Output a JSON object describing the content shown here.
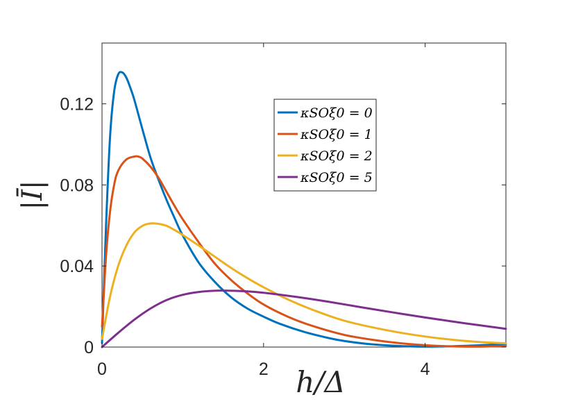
{
  "chart_data": {
    "type": "line",
    "xlabel": "h/Δ",
    "ylabel": "|Ī|",
    "xlim": [
      0,
      5
    ],
    "ylim": [
      0,
      0.15
    ],
    "xticks": [
      {
        "value": 0,
        "label": "0"
      },
      {
        "value": 2,
        "label": "2"
      },
      {
        "value": 4,
        "label": "4"
      }
    ],
    "yticks": [
      {
        "value": 0,
        "label": "0"
      },
      {
        "value": 0.04,
        "label": "0.04"
      },
      {
        "value": 0.08,
        "label": "0.08"
      },
      {
        "value": 0.12,
        "label": "0.12"
      }
    ],
    "grid": false,
    "legend_position": "upper-center",
    "series": [
      {
        "name": "κSOξ0 = 0",
        "color": "#0072BD",
        "x": [
          0,
          0.05,
          0.1,
          0.15,
          0.2,
          0.25,
          0.3,
          0.35,
          0.4,
          0.5,
          0.6,
          0.7,
          0.8,
          0.9,
          1.0,
          1.2,
          1.4,
          1.6,
          1.8,
          2.0,
          2.2,
          2.5,
          2.8,
          3.0,
          3.3,
          3.6,
          4.0,
          4.5,
          5.0
        ],
        "y": [
          0.002,
          0.06,
          0.104,
          0.126,
          0.1345,
          0.1355,
          0.133,
          0.128,
          0.122,
          0.1075,
          0.0935,
          0.0825,
          0.0725,
          0.0635,
          0.055,
          0.0415,
          0.032,
          0.0245,
          0.019,
          0.015,
          0.0115,
          0.0075,
          0.0045,
          0.003,
          0.0015,
          0.0007,
          0.0002,
          0.0006,
          0.0015
        ]
      },
      {
        "name": "κSOξ0 = 1",
        "color": "#D95319",
        "x": [
          0,
          0.05,
          0.1,
          0.15,
          0.2,
          0.3,
          0.4,
          0.45,
          0.5,
          0.6,
          0.7,
          0.8,
          0.9,
          1.0,
          1.2,
          1.4,
          1.6,
          1.8,
          2.0,
          2.3,
          2.6,
          3.0,
          3.4,
          3.8,
          4.2,
          4.6,
          5.0
        ],
        "y": [
          0.01,
          0.045,
          0.067,
          0.08,
          0.087,
          0.0925,
          0.094,
          0.094,
          0.093,
          0.089,
          0.0835,
          0.0765,
          0.0695,
          0.063,
          0.0515,
          0.041,
          0.033,
          0.0265,
          0.021,
          0.015,
          0.0105,
          0.006,
          0.0033,
          0.0015,
          0.0005,
          0.0002,
          0.0005
        ]
      },
      {
        "name": "κSOξ0 = 2",
        "color": "#EDB120",
        "x": [
          0,
          0.1,
          0.2,
          0.3,
          0.4,
          0.5,
          0.6,
          0.7,
          0.8,
          0.9,
          1.0,
          1.2,
          1.4,
          1.6,
          1.8,
          2.0,
          2.3,
          2.6,
          3.0,
          3.5,
          4.0,
          4.5,
          5.0
        ],
        "y": [
          0.004,
          0.025,
          0.04,
          0.05,
          0.0565,
          0.0598,
          0.061,
          0.0608,
          0.0598,
          0.0577,
          0.0553,
          0.05,
          0.0445,
          0.039,
          0.034,
          0.0295,
          0.0235,
          0.0185,
          0.013,
          0.0085,
          0.0052,
          0.003,
          0.0018
        ]
      },
      {
        "name": "κSOξ0 = 5",
        "color": "#7E2F8E",
        "x": [
          0,
          0.2,
          0.4,
          0.6,
          0.8,
          1.0,
          1.2,
          1.4,
          1.6,
          1.8,
          2.0,
          2.4,
          2.8,
          3.2,
          3.6,
          4.0,
          4.5,
          5.0
        ],
        "y": [
          0.0,
          0.007,
          0.0135,
          0.019,
          0.0232,
          0.0258,
          0.0272,
          0.0278,
          0.0278,
          0.0275,
          0.0268,
          0.0248,
          0.0224,
          0.0197,
          0.0171,
          0.0146,
          0.0117,
          0.009
        ]
      }
    ]
  }
}
